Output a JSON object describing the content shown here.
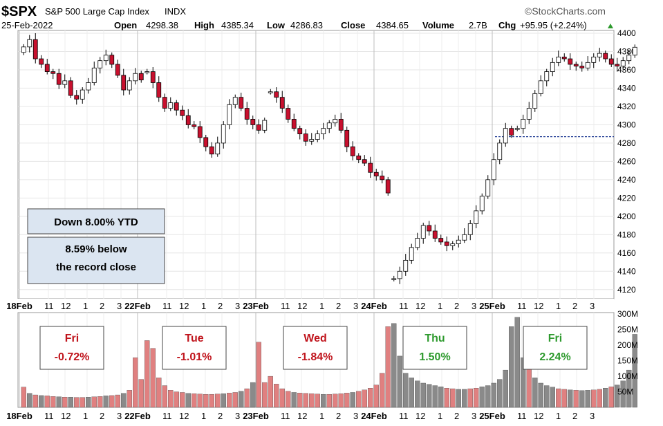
{
  "header": {
    "symbol": "$SPX",
    "name": "S&P 500 Large Cap Index",
    "exchange": "INDX",
    "date": "25-Feb-2022",
    "brand": "©StockCharts.com",
    "open_label": "Open",
    "open_value": "4298.38",
    "high_label": "High",
    "high_value": "4385.34",
    "low_label": "Low",
    "low_value": "4286.83",
    "close_label": "Close",
    "close_value": "4384.65",
    "volume_label": "Volume",
    "volume_value": "2.7B",
    "chg_label": "Chg",
    "chg_value": "+95.95 (+2.24%)"
  },
  "notes": {
    "ytd": "Down 8.00% YTD",
    "record_line1": "8.59% below",
    "record_line2": "the record close"
  },
  "day_boxes": [
    {
      "day": "Fri",
      "pct": "-0.72%",
      "color": "#c0141c"
    },
    {
      "day": "Tue",
      "pct": "-1.01%",
      "color": "#c0141c"
    },
    {
      "day": "Wed",
      "pct": "-1.84%",
      "color": "#c0141c"
    },
    {
      "day": "Thu",
      "pct": "1.50%",
      "color": "#2e9a2e"
    },
    {
      "day": "Fri",
      "pct": "2.24%",
      "color": "#2e9a2e"
    }
  ],
  "colors": {
    "up_candle": "#ffffff",
    "down_candle": "#c8102e",
    "candle_outline": "#000000",
    "volume_down": "#e08080",
    "volume_up": "#8a8a8a",
    "reference_line": "#1f3a93",
    "note_box_fill": "#dbe5f1"
  },
  "chart_data": [
    {
      "type": "candlestick",
      "title": "$SPX S&P 500 Large Cap Index INDX",
      "x_tick_labels": [
        "18Feb",
        "11",
        "12",
        "1",
        "2",
        "3",
        "22Feb",
        "11",
        "12",
        "1",
        "2",
        "3",
        "23Feb",
        "11",
        "12",
        "1",
        "2",
        "3",
        "24Feb",
        "11",
        "12",
        "1",
        "2",
        "3",
        "25Feb",
        "11",
        "12",
        "1",
        "2",
        "3"
      ],
      "y_ticks": [
        4120,
        4140,
        4160,
        4180,
        4200,
        4220,
        4240,
        4260,
        4280,
        4300,
        4320,
        4340,
        4360,
        4380,
        4400
      ],
      "ylim": [
        4110,
        4403
      ],
      "reference_level": 4287,
      "grid": true,
      "days": [
        {
          "label": "18Feb",
          "path": [
            4385,
            4393,
            4372,
            4366,
            4358,
            4356,
            4344,
            4348,
            4332,
            4328,
            4338,
            4346,
            4362,
            4370,
            4376,
            4366,
            4354,
            4338,
            4348,
            4356,
            4362
          ],
          "close": 4348.9
        },
        {
          "label": "22Feb",
          "path": [
            4358,
            4346,
            4330,
            4318,
            4324,
            4316,
            4310,
            4300,
            4298,
            4286,
            4276,
            4268,
            4280,
            4300,
            4322,
            4330,
            4318,
            4306,
            4300,
            4294,
            4304
          ],
          "close": 4304.8
        },
        {
          "label": "23Feb",
          "path": [
            4336,
            4330,
            4318,
            4306,
            4296,
            4290,
            4282,
            4284,
            4290,
            4296,
            4302,
            4306,
            4294,
            4276,
            4266,
            4262,
            4258,
            4248,
            4244,
            4240,
            4226
          ],
          "close": 4225.5
        },
        {
          "label": "24Feb",
          "path": [
            4132,
            4140,
            4152,
            4166,
            4176,
            4190,
            4184,
            4176,
            4172,
            4168,
            4170,
            4174,
            4180,
            4192,
            4206,
            4222,
            4240,
            4262,
            4280,
            4296,
            4298
          ],
          "close": 4288.7
        },
        {
          "label": "25Feb",
          "path": [
            4296,
            4306,
            4318,
            4334,
            4348,
            4358,
            4368,
            4374,
            4372,
            4366,
            4364,
            4362,
            4368,
            4374,
            4378,
            4372,
            4366,
            4364,
            4370,
            4376,
            4384
          ],
          "close": 4384.65
        }
      ]
    },
    {
      "type": "bar",
      "title": "Volume",
      "y_tick_labels": [
        "50M",
        "100M",
        "150M",
        "200M",
        "250M",
        "300M"
      ],
      "ylim": [
        0,
        305
      ],
      "bars": [
        {
          "day": "18Feb",
          "values": [
            65,
            45,
            40,
            38,
            37,
            35,
            34,
            33,
            33,
            32,
            32,
            33,
            34,
            35,
            37,
            38,
            40,
            45,
            55,
            160,
            90
          ],
          "up_flags": [
            0,
            1,
            0,
            1,
            0,
            0,
            1,
            0,
            1,
            0,
            0,
            1,
            0,
            0,
            1,
            0,
            0,
            1,
            0,
            0,
            0
          ]
        },
        {
          "day": "22Feb",
          "values": [
            215,
            190,
            95,
            70,
            55,
            50,
            48,
            45,
            44,
            43,
            42,
            42,
            43,
            44,
            46,
            48,
            52,
            60,
            80,
            210,
            80
          ],
          "up_flags": [
            0,
            0,
            0,
            0,
            0,
            0,
            0,
            1,
            0,
            0,
            0,
            0,
            0,
            1,
            0,
            0,
            1,
            0,
            1,
            0,
            0
          ]
        },
        {
          "day": "23Feb",
          "values": [
            100,
            75,
            60,
            52,
            48,
            46,
            45,
            44,
            43,
            42,
            42,
            43,
            44,
            46,
            48,
            52,
            56,
            62,
            72,
            110,
            260
          ],
          "up_flags": [
            0,
            0,
            0,
            0,
            1,
            0,
            0,
            0,
            0,
            1,
            0,
            0,
            0,
            0,
            1,
            0,
            0,
            0,
            0,
            0,
            0
          ]
        },
        {
          "day": "24Feb",
          "values": [
            270,
            165,
            110,
            95,
            85,
            78,
            74,
            70,
            66,
            62,
            60,
            58,
            58,
            60,
            62,
            66,
            70,
            78,
            90,
            120,
            260
          ],
          "up_flags": [
            1,
            1,
            1,
            1,
            1,
            1,
            1,
            1,
            1,
            0,
            0,
            1,
            1,
            0,
            0,
            1,
            1,
            1,
            1,
            1,
            1
          ]
        },
        {
          "day": "25Feb",
          "values": [
            290,
            160,
            130,
            95,
            78,
            70,
            65,
            60,
            58,
            56,
            55,
            54,
            55,
            56,
            58,
            62,
            66,
            72,
            85,
            120,
            235
          ],
          "up_flags": [
            1,
            1,
            0,
            1,
            1,
            1,
            1,
            0,
            0,
            1,
            0,
            1,
            1,
            0,
            0,
            1,
            0,
            1,
            1,
            1,
            1
          ]
        }
      ]
    }
  ]
}
